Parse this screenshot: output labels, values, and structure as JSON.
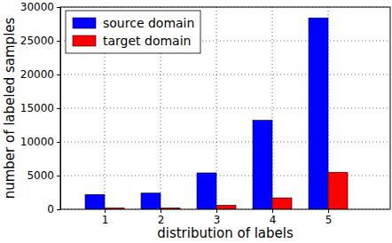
{
  "chart_data": {
    "type": "bar",
    "x_label": "distribution of labels",
    "y_label": "number of labeled samples",
    "categories": [
      "1",
      "2",
      "3",
      "4",
      "5"
    ],
    "series": [
      {
        "name": "source domain",
        "color": "#0000ff",
        "values": [
          2200,
          2400,
          5400,
          13200,
          28400
        ]
      },
      {
        "name": "target domain",
        "color": "#ff0000",
        "values": [
          200,
          200,
          600,
          1700,
          5500
        ]
      }
    ],
    "ylim": [
      0,
      30000
    ],
    "yticks": [
      0,
      5000,
      10000,
      15000,
      20000,
      25000,
      30000
    ],
    "grid": true,
    "legend": "upper left"
  }
}
